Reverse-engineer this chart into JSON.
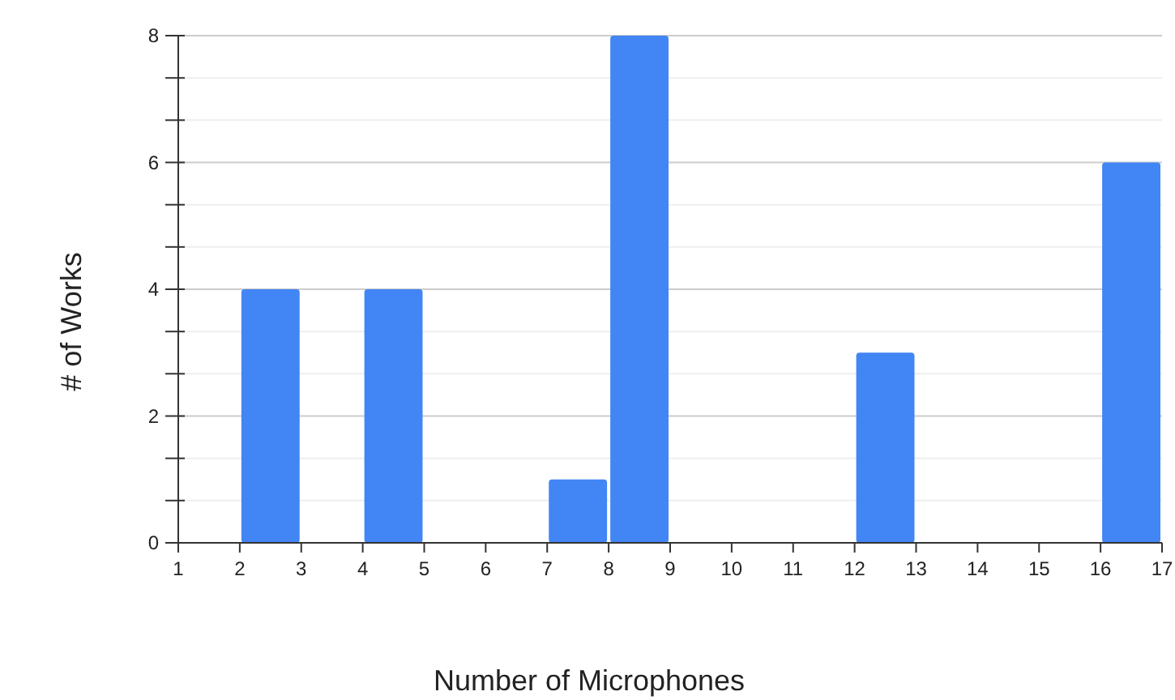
{
  "chart_data": {
    "type": "histogram",
    "xlabel": "Number of Microphones",
    "ylabel": "# of Works",
    "bins": [
      1,
      2,
      3,
      4,
      5,
      6,
      7,
      8,
      9,
      10,
      11,
      12,
      13,
      14,
      15,
      16,
      17
    ],
    "values": [
      0,
      4,
      0,
      4,
      0,
      0,
      1,
      8,
      0,
      0,
      0,
      3,
      0,
      0,
      0,
      6
    ],
    "color": "#4285f4",
    "xlim": [
      1,
      17
    ],
    "xticks": [
      1,
      2,
      3,
      4,
      5,
      6,
      7,
      8,
      9,
      10,
      11,
      12,
      13,
      14,
      15,
      16,
      17
    ],
    "ylim": [
      0,
      8
    ],
    "yticks": [
      0,
      {
        "value": 0.667,
        "label": null
      },
      {
        "value": 1.333,
        "label": null
      },
      2,
      {
        "value": 2.667,
        "label": null
      },
      {
        "value": 3.333,
        "label": null
      },
      4,
      {
        "value": 4.667,
        "label": null
      },
      {
        "value": 5.333,
        "label": null
      },
      6,
      {
        "value": 6.667,
        "label": null
      },
      {
        "value": 7.333,
        "label": null
      },
      8
    ],
    "grid": "y"
  }
}
